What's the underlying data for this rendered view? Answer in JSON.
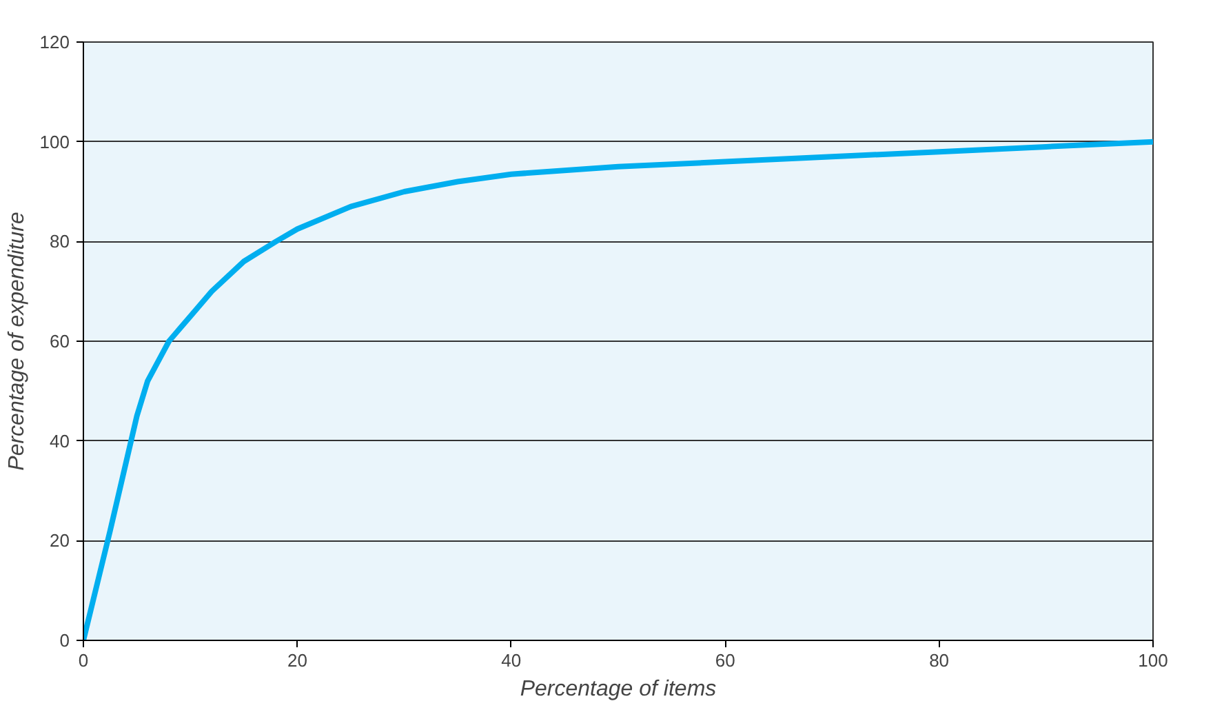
{
  "chart_data": {
    "type": "line",
    "xlabel": "Percentage of items",
    "ylabel": "Percentage of expenditure",
    "x": [
      0,
      2.5,
      5,
      6,
      8,
      10,
      12,
      15,
      18,
      20,
      25,
      30,
      35,
      40,
      50,
      60,
      70,
      80,
      90,
      100
    ],
    "series": [
      {
        "color": "#00aeef",
        "values": [
          0,
          22,
          45,
          52,
          60,
          65,
          70,
          76,
          80,
          82.5,
          87,
          90,
          92,
          93.5,
          95,
          96,
          97,
          98,
          99,
          100
        ]
      }
    ],
    "xlim": [
      0,
      100
    ],
    "ylim": [
      0,
      120
    ],
    "xticks": [
      0,
      20,
      40,
      60,
      80,
      100
    ],
    "yticks": [
      0,
      20,
      40,
      60,
      80,
      100,
      120
    ],
    "grid": "y",
    "marker": "none",
    "line_style": "solid"
  }
}
